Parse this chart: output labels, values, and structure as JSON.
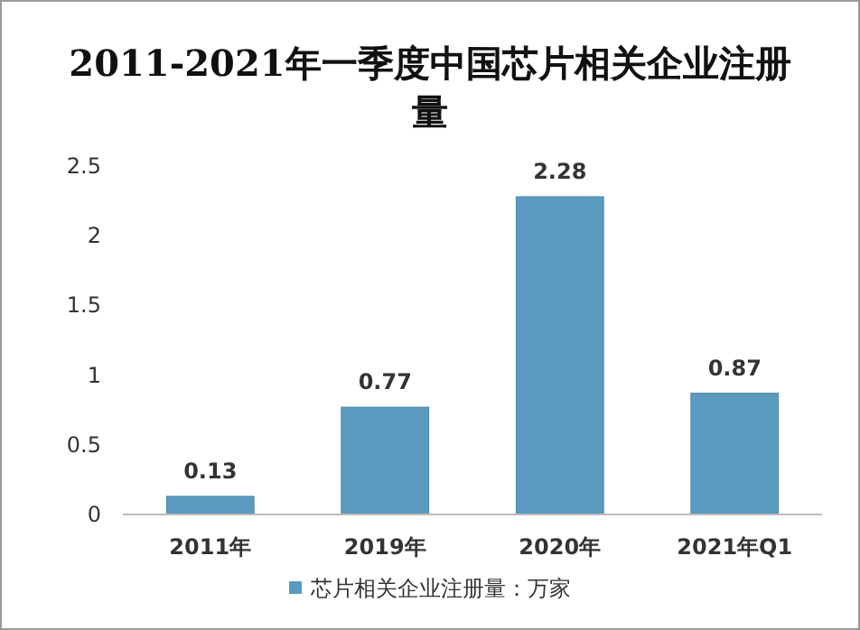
{
  "chart_data": {
    "type": "bar",
    "title": "2011-2021年一季度中国芯片相关企业注册量",
    "categories": [
      "2011年",
      "2019年",
      "2020年",
      "2021年Q1"
    ],
    "series": [
      {
        "name": "芯片相关企业注册量：万家",
        "color": "#5b9bbf",
        "values": [
          0.13,
          0.77,
          2.28,
          0.87
        ]
      }
    ],
    "ylim": [
      0,
      2.5
    ],
    "yticks": [
      0,
      0.5,
      1,
      1.5,
      2,
      2.5
    ],
    "data_labels": true,
    "legend": "bottom",
    "grid": false
  }
}
